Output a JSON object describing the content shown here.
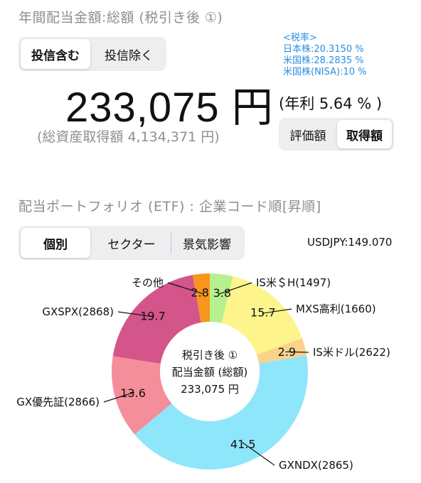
{
  "header": {
    "title": "年間配当金額:総額 (税引き後 ①)",
    "toggle_incl": "投信含む",
    "toggle_excl": "投信除く",
    "tax_title": "<税率>",
    "tax_jp": "日本株:20.3150 %",
    "tax_us": "米国株:28.2835 %",
    "tax_nisa": "米国株(NISA):10 %",
    "amount": "233,075",
    "yen": "円",
    "yield": "(年利 5.64 % )",
    "total_assets": "(総資産取得額 4,134,371 円)",
    "eval_button": "評価額",
    "cost_button": "取得額"
  },
  "portfolio": {
    "title": "配当ポートフォリオ (ETF) : 企業コード順[昇順]",
    "tabs": [
      "個別",
      "セクター",
      "景気影響"
    ],
    "active_tab": 0,
    "fx": "USDJPY:149.070"
  },
  "chart_data": {
    "type": "pie",
    "center_lines": [
      "税引き後 ①",
      "配当金額 (総額)",
      "233,075 円"
    ],
    "slices": [
      {
        "label": "IS米＄H(1497)",
        "value": 3.8,
        "color": "#b7f08f"
      },
      {
        "label": "MXS高利(1660)",
        "value": 15.7,
        "color": "#fdf58c"
      },
      {
        "label": "IS米ドル(2622)",
        "value": 2.9,
        "color": "#fbd28c"
      },
      {
        "label": "GXNDX(2865)",
        "value": 41.5,
        "color": "#8ee6fb"
      },
      {
        "label": "GX優先証(2866)",
        "value": 13.6,
        "color": "#f48e9a"
      },
      {
        "label": "GXSPX(2868)",
        "value": 19.7,
        "color": "#d4558a"
      },
      {
        "label": "その他",
        "value": 2.8,
        "color": "#f7951d"
      }
    ]
  }
}
